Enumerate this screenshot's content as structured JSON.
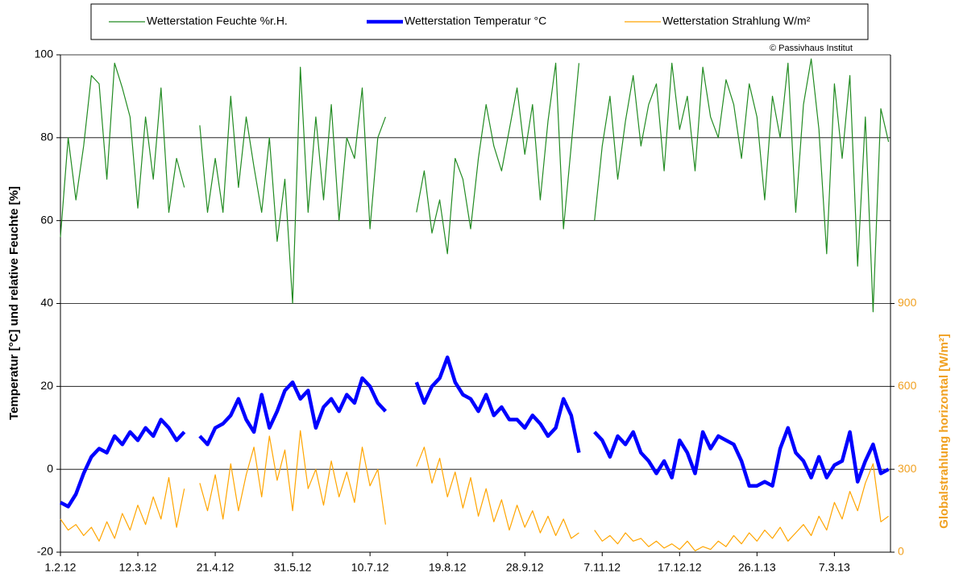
{
  "chart_data": {
    "type": "line",
    "y_label": "Temperatur [°C]  und  relative  Feuchte [%]",
    "y2_label": "Globalstrahlung horizontal [W/m²]",
    "annotation": "© Passivhaus Institut",
    "x": [
      "1.2.12",
      "5.2.12",
      "9.2.12",
      "13.2.12",
      "17.2.12",
      "21.2.12",
      "25.2.12",
      "29.2.12",
      "4.3.12",
      "8.3.12",
      "12.3.12",
      "16.3.12",
      "20.3.12",
      "24.3.12",
      "28.3.12",
      "1.4.12",
      "5.4.12",
      "9.4.12",
      "13.4.12",
      "17.4.12",
      "21.4.12",
      "25.4.12",
      "29.4.12",
      "3.5.12",
      "7.5.12",
      "11.5.12",
      "15.5.12",
      "19.5.12",
      "23.5.12",
      "27.5.12",
      "31.5.12",
      "4.6.12",
      "8.6.12",
      "12.6.12",
      "16.6.12",
      "20.6.12",
      "24.6.12",
      "28.6.12",
      "2.7.12",
      "6.7.12",
      "10.7.12",
      "14.7.12",
      "18.7.12",
      "22.7.12",
      "26.7.12",
      "30.7.12",
      "3.8.12",
      "7.8.12",
      "11.8.12",
      "15.8.12",
      "19.8.12",
      "23.8.12",
      "27.8.12",
      "31.8.12",
      "4.9.12",
      "8.9.12",
      "12.9.12",
      "16.9.12",
      "20.9.12",
      "24.9.12",
      "28.9.12",
      "2.10.12",
      "6.10.12",
      "10.10.12",
      "14.10.12",
      "18.10.12",
      "22.10.12",
      "26.10.12",
      "30.10.12",
      "3.11.12",
      "7.11.12",
      "11.11.12",
      "15.11.12",
      "19.11.12",
      "23.11.12",
      "27.11.12",
      "1.12.12",
      "5.12.12",
      "9.12.12",
      "13.12.12",
      "17.12.12",
      "21.12.12",
      "25.12.12",
      "29.12.12",
      "2.1.13",
      "6.1.13",
      "10.1.13",
      "14.1.13",
      "18.1.13",
      "22.1.13",
      "26.1.13",
      "30.1.13",
      "3.2.13",
      "7.2.13",
      "11.2.13",
      "15.2.13",
      "19.2.13",
      "23.2.13",
      "27.2.13",
      "3.3.13",
      "7.3.13",
      "11.3.13",
      "15.3.13",
      "19.3.13",
      "23.3.13",
      "27.3.13",
      "31.3.13",
      "4.4.13"
    ],
    "xlim": [
      "1.2.12",
      "5.4.13"
    ],
    "xticks": [
      "1.2.12",
      "12.3.12",
      "21.4.12",
      "31.5.12",
      "10.7.12",
      "19.8.12",
      "28.9.12",
      "7.11.12",
      "17.12.12",
      "26.1.13",
      "7.3.13"
    ],
    "ylim": [
      -20,
      100
    ],
    "yticks": [
      -20,
      0,
      20,
      40,
      60,
      80,
      100
    ],
    "y2lim": [
      0,
      1800
    ],
    "y2ticks": [
      0,
      300,
      600,
      900
    ],
    "y2_color": "#f0a020",
    "grid": true,
    "series": [
      {
        "name": "Wetterstation Feuchte %r.H.",
        "color": "#228b22",
        "width": 1.2,
        "values": [
          56,
          80,
          65,
          78,
          95,
          93,
          70,
          98,
          92,
          85,
          63,
          85,
          70,
          92,
          62,
          75,
          68,
          null,
          83,
          62,
          75,
          62,
          90,
          68,
          85,
          73,
          62,
          80,
          55,
          70,
          40,
          97,
          62,
          85,
          65,
          88,
          60,
          80,
          75,
          92,
          58,
          80,
          85,
          null,
          null,
          null,
          62,
          72,
          57,
          65,
          52,
          75,
          70,
          58,
          75,
          88,
          78,
          72,
          82,
          92,
          76,
          88,
          65,
          84,
          98,
          58,
          78,
          98,
          null,
          60,
          78,
          90,
          70,
          84,
          95,
          78,
          88,
          93,
          72,
          98,
          82,
          90,
          72,
          97,
          85,
          80,
          94,
          88,
          75,
          93,
          85,
          65,
          90,
          80,
          98,
          62,
          88,
          99,
          82,
          52,
          93,
          75,
          95,
          49,
          85,
          38,
          87,
          79
        ]
      },
      {
        "name": "Wetterstation Temperatur °C",
        "color": "#0000ff",
        "width": 4.5,
        "values": [
          -8,
          -9,
          -6,
          -1,
          3,
          5,
          4,
          8,
          6,
          9,
          7,
          10,
          8,
          12,
          10,
          7,
          9,
          null,
          8,
          6,
          10,
          11,
          13,
          17,
          12,
          9,
          18,
          10,
          14,
          19,
          21,
          17,
          19,
          10,
          15,
          17,
          14,
          18,
          16,
          22,
          20,
          16,
          14,
          null,
          null,
          null,
          21,
          16,
          20,
          22,
          27,
          21,
          18,
          17,
          14,
          18,
          13,
          15,
          12,
          12,
          10,
          13,
          11,
          8,
          10,
          17,
          13,
          4,
          null,
          9,
          7,
          3,
          8,
          6,
          9,
          4,
          2,
          -1,
          2,
          -2,
          7,
          4,
          -1,
          9,
          5,
          8,
          7,
          6,
          2,
          -4,
          -4,
          -3,
          -4,
          5,
          10,
          4,
          2,
          -2,
          3,
          -2,
          1,
          2,
          9,
          -3,
          2,
          6,
          -1,
          0
        ]
      },
      {
        "name": "Wetterstation Strahlung W/m²",
        "color": "#ffa500",
        "width": 1.2,
        "axis": "y2",
        "values": [
          120,
          80,
          100,
          60,
          90,
          40,
          110,
          50,
          140,
          80,
          170,
          100,
          200,
          120,
          270,
          90,
          230,
          null,
          250,
          150,
          280,
          120,
          320,
          150,
          280,
          380,
          200,
          420,
          260,
          370,
          150,
          440,
          230,
          300,
          170,
          330,
          200,
          290,
          180,
          380,
          240,
          300,
          100,
          null,
          null,
          null,
          310,
          380,
          250,
          340,
          200,
          290,
          160,
          270,
          130,
          230,
          110,
          190,
          80,
          170,
          90,
          150,
          70,
          130,
          60,
          120,
          50,
          70,
          null,
          80,
          40,
          60,
          30,
          70,
          40,
          50,
          20,
          40,
          15,
          30,
          10,
          40,
          5,
          20,
          10,
          40,
          20,
          60,
          30,
          70,
          40,
          80,
          50,
          90,
          40,
          70,
          100,
          60,
          130,
          80,
          180,
          120,
          220,
          150,
          250,
          320,
          110,
          130
        ]
      }
    ]
  }
}
